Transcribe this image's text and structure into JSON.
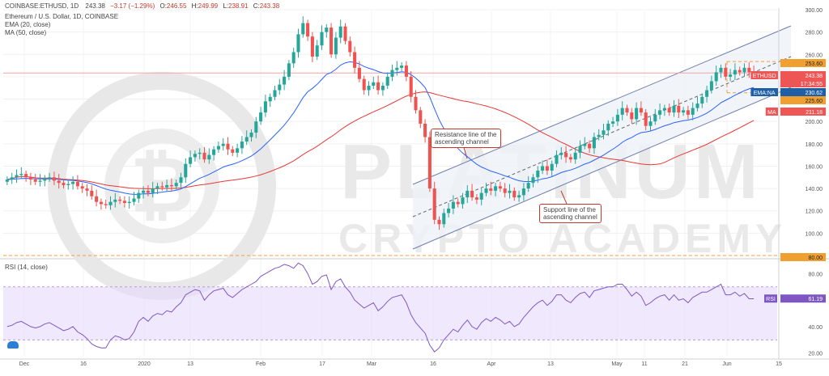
{
  "header": {
    "symbol": "COINBASE:ETHUSD, 1D",
    "o_label": "O:",
    "o": "246.55",
    "h_label": "H:",
    "h": "249.99",
    "l_label": "L:",
    "l": "238.91",
    "c_label": "C:",
    "c": "243.38",
    "last": "243.38",
    "change": "−3.17 (−1.29%)",
    "title": "Ethereum / U.S. Dollar, 1D, COINBASE",
    "ema_legend": "EMA (20, close)",
    "ma_legend": "MA (50, close)",
    "rsi_legend": "RSI (14, close)"
  },
  "watermark": {
    "line1": "PLATINUM",
    "line2": "CRYPTO ACADEMY"
  },
  "annotations": {
    "resistance": [
      "Resistance line of the",
      "ascending channel"
    ],
    "support": [
      "Support line of the",
      "ascending channel"
    ]
  },
  "price_tags": [
    {
      "label": "",
      "value": "253.60",
      "color": "#f0a030",
      "text_color": "#222"
    },
    {
      "label": "ETHUSD",
      "value": "243.38",
      "color": "#ee5555",
      "text_color": "#ffffff"
    },
    {
      "label": "",
      "value": "17:34:55",
      "color": "#ee5555",
      "text_color": "#ffffff"
    },
    {
      "label": "EMA:NA",
      "value": "230.62",
      "color": "#1e5fa8",
      "text_color": "#ffffff"
    },
    {
      "label": "",
      "value": "225.60",
      "color": "#f0a030",
      "text_color": "#222"
    },
    {
      "label": "MA",
      "value": "211.18",
      "color": "#ee5555",
      "text_color": "#ffffff"
    },
    {
      "label": "",
      "value": "80.00",
      "color": "#f0a030",
      "text_color": "#222"
    }
  ],
  "rsi_tag": {
    "label": "RSI",
    "value": "61.19"
  },
  "colors": {
    "up": "#26a69a",
    "down": "#ef5350",
    "ema": "#2962ff",
    "ma": "#e53935",
    "rsi": "#7e57c2",
    "rsi_band": "#e6d8fb",
    "channel": "#6e7fae",
    "channel_fill": "#eef1f8",
    "level": "#f0a030"
  },
  "chart_data": [
    {
      "type": "candlestick",
      "title": "Ethereum / U.S. Dollar, 1D, COINBASE",
      "y_ticks": [
        80,
        100,
        120,
        140,
        160,
        180,
        200,
        220,
        240,
        260,
        280,
        300
      ],
      "ylim": [
        80,
        300
      ],
      "x_ticks": [
        "Dec",
        "16",
        "2020",
        "13",
        "Feb",
        "17",
        "Mar",
        "16",
        "Apr",
        "13",
        "May",
        "11",
        "21",
        "Jun",
        "15"
      ],
      "last_price": 243.38,
      "series": [
        {
          "name": "EMA (20, close)",
          "last": 230.62
        },
        {
          "name": "MA (50, close)",
          "last": 211.18
        }
      ],
      "horizontal_levels": [
        253.6,
        225.6,
        80.0
      ],
      "channel": {
        "resistance": "Resistance line of the ascending channel",
        "support": "Support line of the ascending channel"
      },
      "candles_close_approx": [
        148,
        150,
        152,
        153,
        150,
        148,
        146,
        147,
        149,
        150,
        147,
        145,
        143,
        144,
        146,
        142,
        140,
        138,
        133,
        128,
        126,
        125,
        128,
        130,
        129,
        127,
        128,
        131,
        136,
        138,
        136,
        140,
        142,
        141,
        143,
        142,
        145,
        150,
        162,
        168,
        171,
        172,
        166,
        170,
        175,
        178,
        180,
        175,
        172,
        176,
        182,
        186,
        190,
        200,
        208,
        218,
        222,
        228,
        233,
        240,
        252,
        262,
        278,
        288,
        276,
        258,
        268,
        280,
        284,
        260,
        275,
        285,
        272,
        262,
        248,
        238,
        228,
        232,
        235,
        228,
        232,
        240,
        246,
        248,
        250,
        240,
        222,
        210,
        198,
        186,
        140,
        112,
        108,
        118,
        122,
        128,
        126,
        132,
        138,
        132,
        130,
        136,
        140,
        138,
        142,
        140,
        136,
        138,
        132,
        134,
        140,
        145,
        150,
        156,
        160,
        156,
        162,
        170,
        172,
        168,
        166,
        172,
        178,
        180,
        176,
        186,
        188,
        192,
        198,
        200,
        206,
        212,
        208,
        202,
        212,
        208,
        196,
        200,
        206,
        210,
        212,
        208,
        214,
        208,
        210,
        206,
        212,
        216,
        222,
        228,
        236,
        244,
        248,
        240,
        242,
        246,
        244,
        248,
        244,
        243
      ]
    },
    {
      "type": "line",
      "title": "RSI (14, close)",
      "y_ticks": [
        20,
        40,
        60,
        80
      ],
      "ylim": [
        18,
        90
      ],
      "band": [
        30,
        70
      ],
      "last": 61.19,
      "values_approx": [
        40,
        41,
        43,
        44,
        42,
        40,
        39,
        40,
        42,
        43,
        41,
        39,
        37,
        38,
        40,
        36,
        34,
        31,
        27,
        25,
        24,
        24,
        30,
        33,
        32,
        30,
        31,
        36,
        44,
        47,
        44,
        48,
        50,
        49,
        52,
        51,
        55,
        58,
        64,
        66,
        68,
        67,
        60,
        64,
        67,
        68,
        69,
        64,
        62,
        65,
        68,
        70,
        72,
        74,
        78,
        80,
        82,
        84,
        85,
        87,
        86,
        84,
        88,
        86,
        80,
        72,
        74,
        78,
        79,
        68,
        74,
        76,
        70,
        66,
        60,
        57,
        54,
        56,
        58,
        52,
        55,
        59,
        62,
        63,
        64,
        58,
        49,
        43,
        39,
        35,
        26,
        21,
        24,
        30,
        34,
        38,
        36,
        41,
        45,
        40,
        38,
        43,
        46,
        44,
        47,
        45,
        42,
        44,
        40,
        42,
        47,
        51,
        55,
        58,
        60,
        56,
        59,
        64,
        64,
        60,
        58,
        62,
        65,
        66,
        62,
        67,
        68,
        69,
        70,
        70,
        72,
        72,
        68,
        63,
        66,
        63,
        56,
        58,
        61,
        63,
        64,
        60,
        64,
        60,
        61,
        58,
        62,
        64,
        66,
        66,
        68,
        70,
        72,
        64,
        64,
        66,
        63,
        65,
        61,
        61
      ]
    }
  ]
}
